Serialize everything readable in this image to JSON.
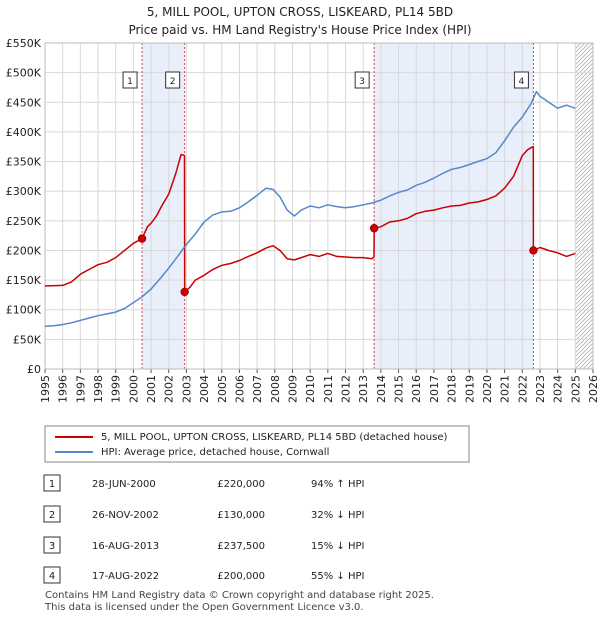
{
  "chart_data": {
    "type": "line",
    "title": "5, MILL POOL, UPTON CROSS, LISKEARD, PL14 5BD",
    "subtitle": "Price paid vs. HM Land Registry's House Price Index (HPI)",
    "xlim": [
      1995,
      2026
    ],
    "ylim": [
      0,
      550000
    ],
    "x_ticks": [
      "1995",
      "1996",
      "1997",
      "1998",
      "1999",
      "2000",
      "2001",
      "2002",
      "2003",
      "2004",
      "2005",
      "2006",
      "2007",
      "2008",
      "2009",
      "2010",
      "2011",
      "2012",
      "2013",
      "2014",
      "2015",
      "2016",
      "2017",
      "2018",
      "2019",
      "2020",
      "2021",
      "2022",
      "2023",
      "2024",
      "2025",
      "2026"
    ],
    "y_ticks": [
      {
        "value": 0,
        "label": "£0"
      },
      {
        "value": 50000,
        "label": "£50K"
      },
      {
        "value": 100000,
        "label": "£100K"
      },
      {
        "value": 150000,
        "label": "£150K"
      },
      {
        "value": 200000,
        "label": "£200K"
      },
      {
        "value": 250000,
        "label": "£250K"
      },
      {
        "value": 300000,
        "label": "£300K"
      },
      {
        "value": 350000,
        "label": "£350K"
      },
      {
        "value": 400000,
        "label": "£400K"
      },
      {
        "value": 450000,
        "label": "£450K"
      },
      {
        "value": 500000,
        "label": "£500K"
      },
      {
        "value": 550000,
        "label": "£550K"
      }
    ],
    "colors": {
      "property": "#cc0000",
      "hpi": "#5588cc",
      "shade": "#e8eefa",
      "grid": "#d8d8d8",
      "marker_line": "#dd4444"
    },
    "shaded_ranges": [
      [
        2000.49,
        2002.9
      ],
      [
        2013.62,
        2022.63
      ]
    ],
    "future_hatch_from": 2025.0,
    "series": [
      {
        "name": "5, MILL POOL, UPTON CROSS, LISKEARD, PL14 5BD (detached house)",
        "color": "#cc0000",
        "x": [
          1995.0,
          1996.0,
          1996.5,
          1997.0,
          1997.5,
          1998.0,
          1998.5,
          1999.0,
          1999.5,
          2000.0,
          2000.49,
          2000.8,
          2001.0,
          2001.3,
          2001.6,
          2002.0,
          2002.4,
          2002.7,
          2002.89,
          2002.9,
          2003.2,
          2003.5,
          2004.0,
          2004.5,
          2005.0,
          2005.5,
          2006.0,
          2006.5,
          2007.0,
          2007.5,
          2007.9,
          2008.3,
          2008.7,
          2009.1,
          2009.5,
          2010.0,
          2010.5,
          2011.0,
          2011.5,
          2012.0,
          2012.5,
          2013.0,
          2013.5,
          2013.61,
          2013.62,
          2014.0,
          2014.5,
          2015.0,
          2015.5,
          2016.0,
          2016.5,
          2017.0,
          2017.5,
          2018.0,
          2018.5,
          2019.0,
          2019.5,
          2020.0,
          2020.5,
          2021.0,
          2021.5,
          2022.0,
          2022.3,
          2022.6,
          2022.62,
          2022.63,
          2023.0,
          2023.5,
          2024.0,
          2024.5,
          2025.0
        ],
        "y": [
          140000,
          141000,
          147000,
          160000,
          168000,
          176000,
          180000,
          188000,
          200000,
          212000,
          220000,
          240000,
          246000,
          258000,
          275000,
          295000,
          330000,
          362000,
          360000,
          130000,
          138000,
          150000,
          158000,
          168000,
          175000,
          178000,
          183000,
          190000,
          196000,
          204000,
          208000,
          200000,
          186000,
          184000,
          188000,
          193000,
          190000,
          195000,
          190000,
          189000,
          188000,
          188000,
          186000,
          189000,
          237500,
          240000,
          248000,
          250000,
          254000,
          262000,
          266000,
          268000,
          272000,
          275000,
          276000,
          280000,
          282000,
          286000,
          292000,
          305000,
          325000,
          360000,
          370000,
          375000,
          375000,
          200000,
          205000,
          200000,
          196000,
          190000,
          195000
        ]
      },
      {
        "name": "HPI: Average price, detached house, Cornwall",
        "color": "#5588cc",
        "x": [
          1995.0,
          1995.5,
          1996.0,
          1996.5,
          1997.0,
          1997.5,
          1998.0,
          1998.5,
          1999.0,
          1999.5,
          2000.0,
          2000.5,
          2001.0,
          2001.5,
          2002.0,
          2002.5,
          2003.0,
          2003.5,
          2004.0,
          2004.5,
          2005.0,
          2005.5,
          2006.0,
          2006.5,
          2007.0,
          2007.5,
          2007.9,
          2008.3,
          2008.7,
          2009.1,
          2009.5,
          2010.0,
          2010.5,
          2011.0,
          2011.5,
          2012.0,
          2012.5,
          2013.0,
          2013.5,
          2014.0,
          2014.5,
          2015.0,
          2015.5,
          2016.0,
          2016.5,
          2017.0,
          2017.5,
          2018.0,
          2018.5,
          2019.0,
          2019.5,
          2020.0,
          2020.5,
          2021.0,
          2021.5,
          2022.0,
          2022.5,
          2022.8,
          2023.0,
          2023.5,
          2024.0,
          2024.5,
          2025.0
        ],
        "y": [
          72000,
          73000,
          75000,
          78000,
          82000,
          86000,
          90000,
          93000,
          96000,
          102000,
          112000,
          122000,
          135000,
          152000,
          170000,
          190000,
          210000,
          228000,
          248000,
          260000,
          265000,
          266000,
          272000,
          282000,
          293000,
          305000,
          303000,
          290000,
          268000,
          258000,
          268000,
          275000,
          272000,
          277000,
          274000,
          272000,
          274000,
          277000,
          280000,
          285000,
          292000,
          298000,
          302000,
          310000,
          315000,
          322000,
          330000,
          337000,
          340000,
          345000,
          350000,
          355000,
          365000,
          385000,
          408000,
          425000,
          448000,
          468000,
          460000,
          450000,
          440000,
          445000,
          440000
        ]
      }
    ],
    "sales": [
      {
        "n": "1",
        "x": 2000.49,
        "y": 220000,
        "date": "28-JUN-2000",
        "price": "£220,000",
        "hpi": "94% ↑ HPI"
      },
      {
        "n": "2",
        "x": 2002.9,
        "y": 130000,
        "date": "26-NOV-2002",
        "price": "£130,000",
        "hpi": "32% ↓ HPI"
      },
      {
        "n": "3",
        "x": 2013.62,
        "y": 237500,
        "date": "16-AUG-2013",
        "price": "£237,500",
        "hpi": "15% ↓ HPI"
      },
      {
        "n": "4",
        "x": 2022.63,
        "y": 200000,
        "date": "17-AUG-2022",
        "price": "£200,000",
        "hpi": "55% ↓ HPI"
      }
    ]
  },
  "footer": {
    "line1": "Contains HM Land Registry data © Crown copyright and database right 2025.",
    "line2": "This data is licensed under the Open Government Licence v3.0."
  }
}
